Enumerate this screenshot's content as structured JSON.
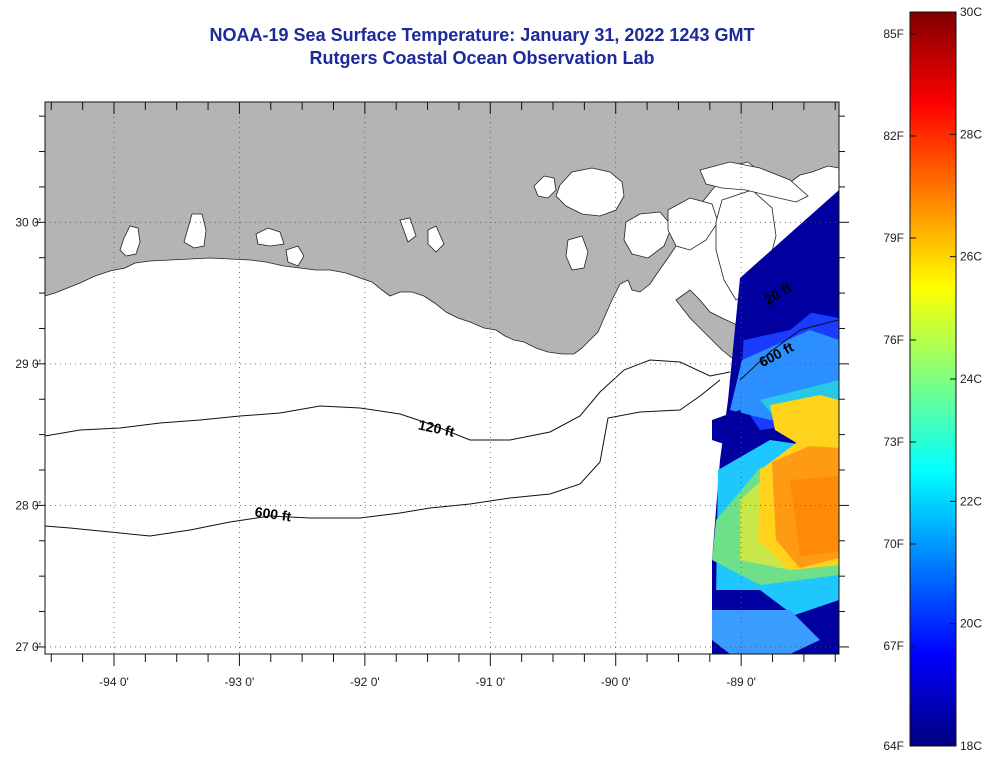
{
  "header": {
    "title": "NOAA-19 Sea Surface Temperature:  January 31, 2022 1243 GMT",
    "subtitle": "Rutgers Coastal Ocean Observation Lab"
  },
  "map": {
    "lon_range": [
      -94.55,
      -88.22
    ],
    "lat_range": [
      26.95,
      30.85
    ],
    "lon_ticks": [
      {
        "value": -94,
        "label": "-94 0'"
      },
      {
        "value": -93,
        "label": "-93 0'"
      },
      {
        "value": -92,
        "label": "-92 0'"
      },
      {
        "value": -91,
        "label": "-91 0'"
      },
      {
        "value": -90,
        "label": "-90 0'"
      },
      {
        "value": -89,
        "label": "-89 0'"
      }
    ],
    "lat_ticks": [
      {
        "value": 27,
        "label": "27 0'"
      },
      {
        "value": 28,
        "label": "28 0'"
      },
      {
        "value": 29,
        "label": "29 0'"
      },
      {
        "value": 30,
        "label": "30 0'"
      }
    ],
    "contours": [
      {
        "label": "120 ft"
      },
      {
        "label": "600 ft"
      },
      {
        "label": "20 ft"
      },
      {
        "label": "600 ft"
      }
    ],
    "land_color": "#b4b4b4",
    "ocean_color": "#ffffff"
  },
  "colorbar": {
    "colors": [
      "#00007f",
      "#0000ff",
      "#007fff",
      "#00ffff",
      "#7fff7f",
      "#ffff00",
      "#ff7f00",
      "#ff0000",
      "#7f0000"
    ],
    "fahrenheit_labels": [
      "85F",
      "82F",
      "79F",
      "76F",
      "73F",
      "70F",
      "67F",
      "64F"
    ],
    "celsius_labels": [
      "30C",
      "28C",
      "26C",
      "24C",
      "22C",
      "20C",
      "18C"
    ]
  }
}
